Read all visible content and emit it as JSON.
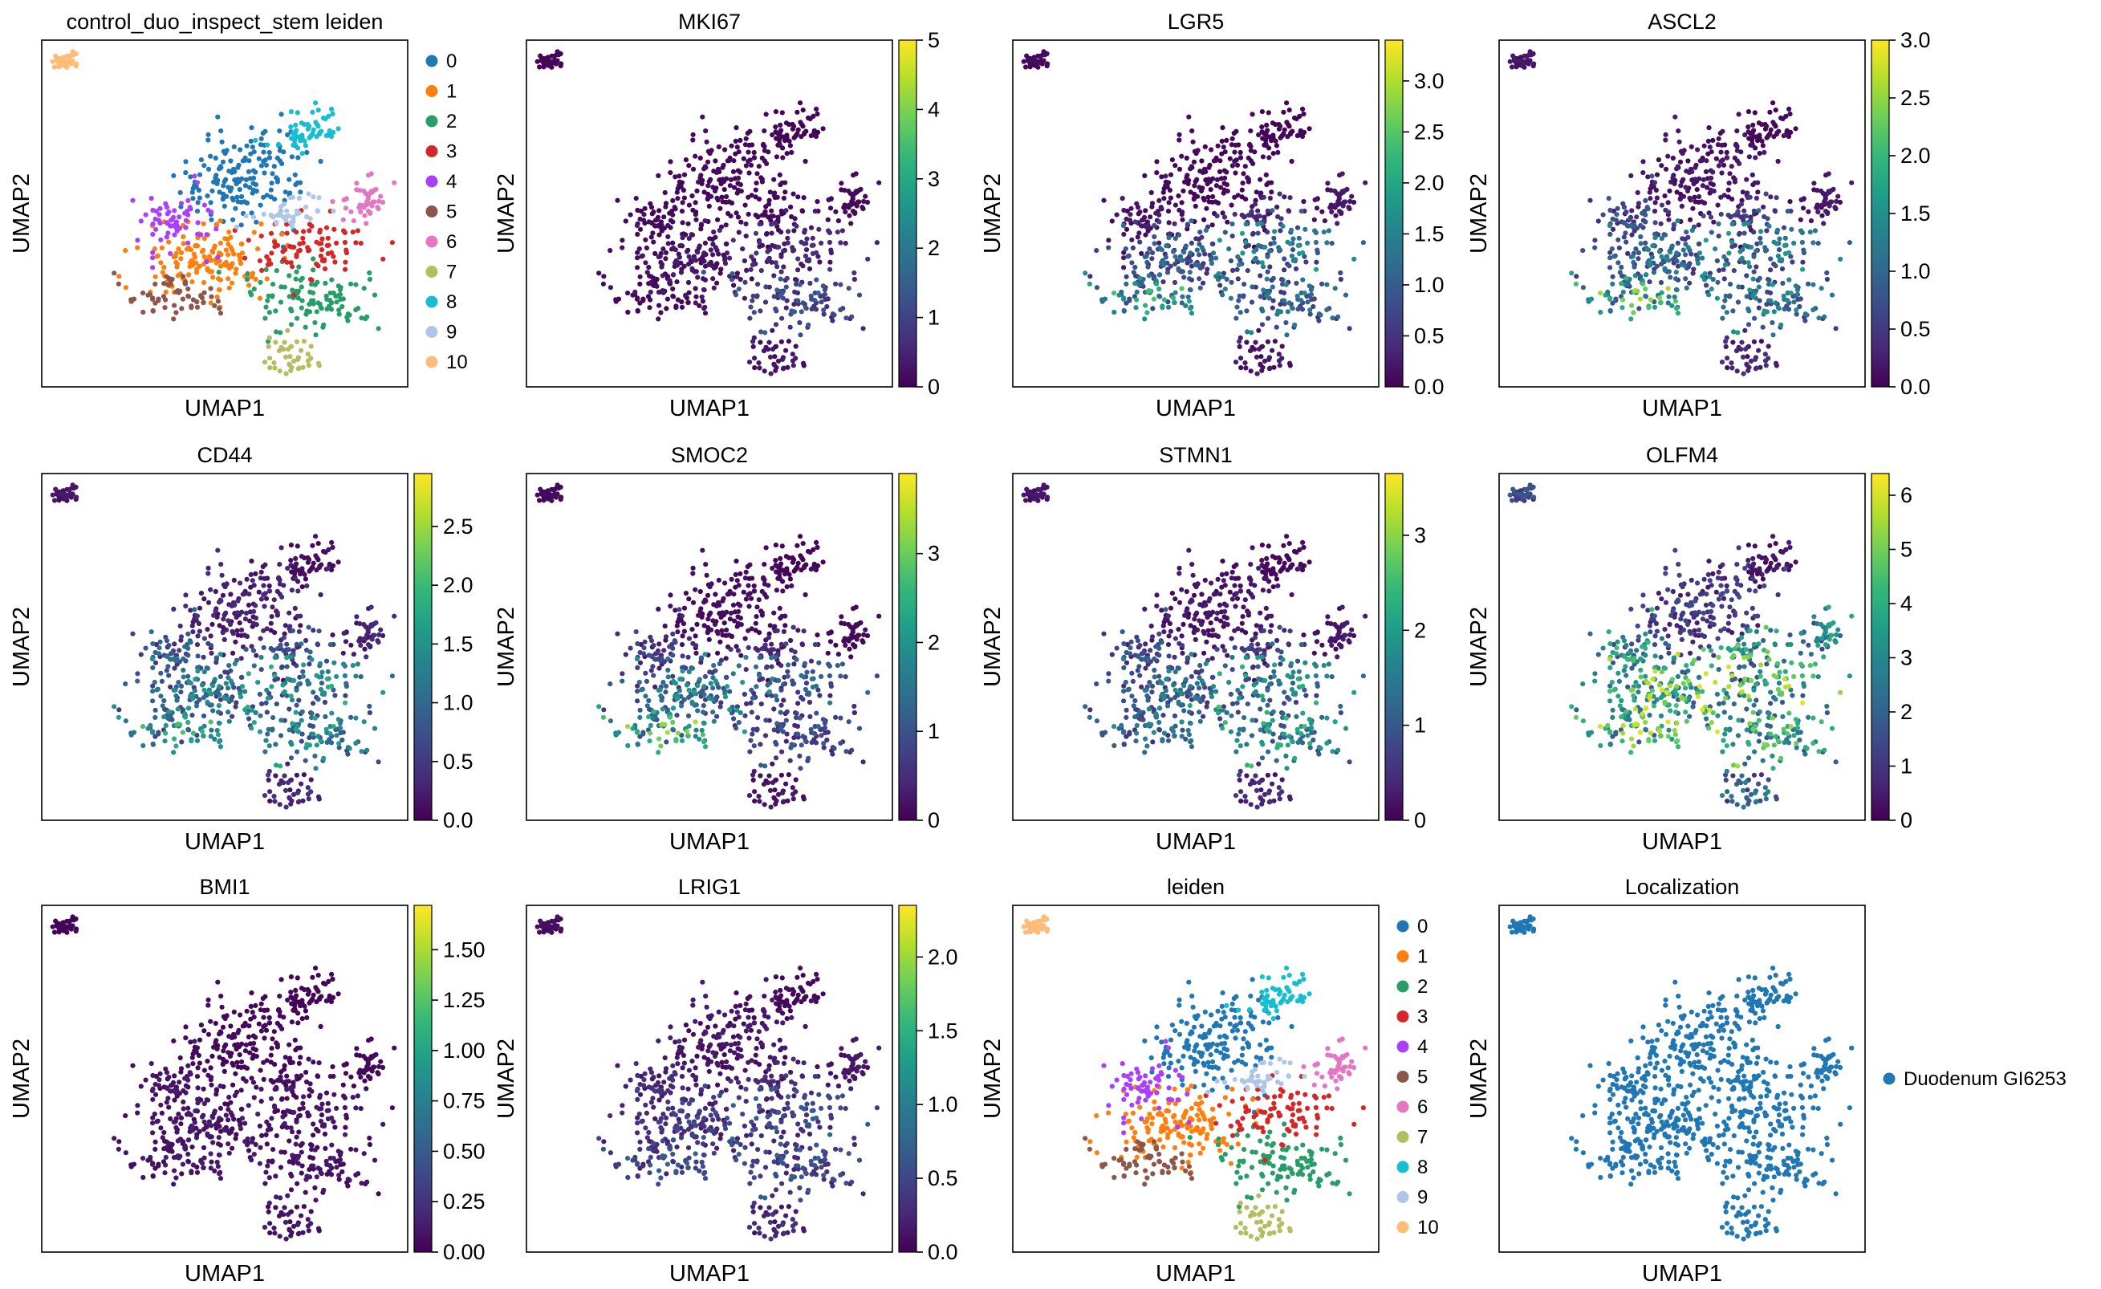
{
  "colors": {
    "clusters": [
      "#1f77b4",
      "#ff7f0e",
      "#279e68",
      "#d62728",
      "#aa40fc",
      "#8c564b",
      "#e377c2",
      "#b5bd61",
      "#17becf",
      "#aec7e8",
      "#ffbb78"
    ],
    "localization": "#1f77b4",
    "viridis_stops": [
      "#440154",
      "#482878",
      "#3e4989",
      "#31688e",
      "#26828e",
      "#1f9e89",
      "#35b779",
      "#6ece58",
      "#b5de2b",
      "#fde725"
    ]
  },
  "chart_data": [
    {
      "type": "scatter",
      "color_mode": "categorical",
      "title": "control_duo_inspect_stem leiden",
      "xlabel": "UMAP1",
      "ylabel": "UMAP2",
      "legend": {
        "placement": "right",
        "entries": [
          "0",
          "1",
          "2",
          "3",
          "4",
          "5",
          "6",
          "7",
          "8",
          "9",
          "10"
        ]
      }
    },
    {
      "type": "scatter",
      "color_mode": "continuous",
      "gene": "MKI67",
      "title": "MKI67",
      "xlabel": "UMAP1",
      "ylabel": "UMAP2",
      "colorbar": {
        "vmin": 0,
        "vmax": 5,
        "ticks": [
          0,
          1,
          2,
          3,
          4,
          5
        ],
        "tick_labels": [
          "0",
          "1",
          "2",
          "3",
          "4",
          "5"
        ]
      }
    },
    {
      "type": "scatter",
      "color_mode": "continuous",
      "gene": "LGR5",
      "title": "LGR5",
      "xlabel": "UMAP1",
      "ylabel": "UMAP2",
      "colorbar": {
        "vmin": 0,
        "vmax": 3.4,
        "ticks": [
          0,
          0.5,
          1,
          1.5,
          2,
          2.5,
          3
        ],
        "tick_labels": [
          "0.0",
          "0.5",
          "1.0",
          "1.5",
          "2.0",
          "2.5",
          "3.0"
        ]
      }
    },
    {
      "type": "scatter",
      "color_mode": "continuous",
      "gene": "ASCL2",
      "title": "ASCL2",
      "xlabel": "UMAP1",
      "ylabel": "UMAP2",
      "colorbar": {
        "vmin": 0,
        "vmax": 3.0,
        "ticks": [
          0,
          0.5,
          1,
          1.5,
          2,
          2.5,
          3
        ],
        "tick_labels": [
          "0.0",
          "0.5",
          "1.0",
          "1.5",
          "2.0",
          "2.5",
          "3.0"
        ]
      }
    },
    {
      "type": "scatter",
      "color_mode": "continuous",
      "gene": "CD44",
      "title": "CD44",
      "xlabel": "UMAP1",
      "ylabel": "UMAP2",
      "colorbar": {
        "vmin": 0,
        "vmax": 2.95,
        "ticks": [
          0,
          0.5,
          1,
          1.5,
          2,
          2.5
        ],
        "tick_labels": [
          "0.0",
          "0.5",
          "1.0",
          "1.5",
          "2.0",
          "2.5"
        ]
      }
    },
    {
      "type": "scatter",
      "color_mode": "continuous",
      "gene": "SMOC2",
      "title": "SMOC2",
      "xlabel": "UMAP1",
      "ylabel": "UMAP2",
      "colorbar": {
        "vmin": 0,
        "vmax": 3.9,
        "ticks": [
          0,
          1,
          2,
          3
        ],
        "tick_labels": [
          "0",
          "1",
          "2",
          "3"
        ]
      }
    },
    {
      "type": "scatter",
      "color_mode": "continuous",
      "gene": "STMN1",
      "title": "STMN1",
      "xlabel": "UMAP1",
      "ylabel": "UMAP2",
      "colorbar": {
        "vmin": 0,
        "vmax": 3.65,
        "ticks": [
          0,
          1,
          2,
          3
        ],
        "tick_labels": [
          "0",
          "1",
          "2",
          "3"
        ]
      }
    },
    {
      "type": "scatter",
      "color_mode": "continuous",
      "gene": "OLFM4",
      "title": "OLFM4",
      "xlabel": "UMAP1",
      "ylabel": "UMAP2",
      "colorbar": {
        "vmin": 0,
        "vmax": 6.4,
        "ticks": [
          0,
          1,
          2,
          3,
          4,
          5,
          6
        ],
        "tick_labels": [
          "0",
          "1",
          "2",
          "3",
          "4",
          "5",
          "6"
        ]
      }
    },
    {
      "type": "scatter",
      "color_mode": "continuous",
      "gene": "BMI1",
      "title": "BMI1",
      "xlabel": "UMAP1",
      "ylabel": "UMAP2",
      "colorbar": {
        "vmin": 0,
        "vmax": 1.72,
        "ticks": [
          0,
          0.25,
          0.5,
          0.75,
          1,
          1.25,
          1.5
        ],
        "tick_labels": [
          "0.00",
          "0.25",
          "0.50",
          "0.75",
          "1.00",
          "1.25",
          "1.50"
        ]
      }
    },
    {
      "type": "scatter",
      "color_mode": "continuous",
      "gene": "LRIG1",
      "title": "LRIG1",
      "xlabel": "UMAP1",
      "ylabel": "UMAP2",
      "colorbar": {
        "vmin": 0,
        "vmax": 2.35,
        "ticks": [
          0,
          0.5,
          1,
          1.5,
          2
        ],
        "tick_labels": [
          "0.0",
          "0.5",
          "1.0",
          "1.5",
          "2.0"
        ]
      }
    },
    {
      "type": "scatter",
      "color_mode": "categorical",
      "title": "leiden",
      "xlabel": "UMAP1",
      "ylabel": "UMAP2",
      "legend": {
        "placement": "right",
        "entries": [
          "0",
          "1",
          "2",
          "3",
          "4",
          "5",
          "6",
          "7",
          "8",
          "9",
          "10"
        ]
      }
    },
    {
      "type": "scatter",
      "color_mode": "single",
      "title": "Localization",
      "xlabel": "UMAP1",
      "ylabel": "UMAP2",
      "legend": {
        "placement": "right",
        "entries": [
          "Duodenum GI6253"
        ]
      }
    }
  ]
}
